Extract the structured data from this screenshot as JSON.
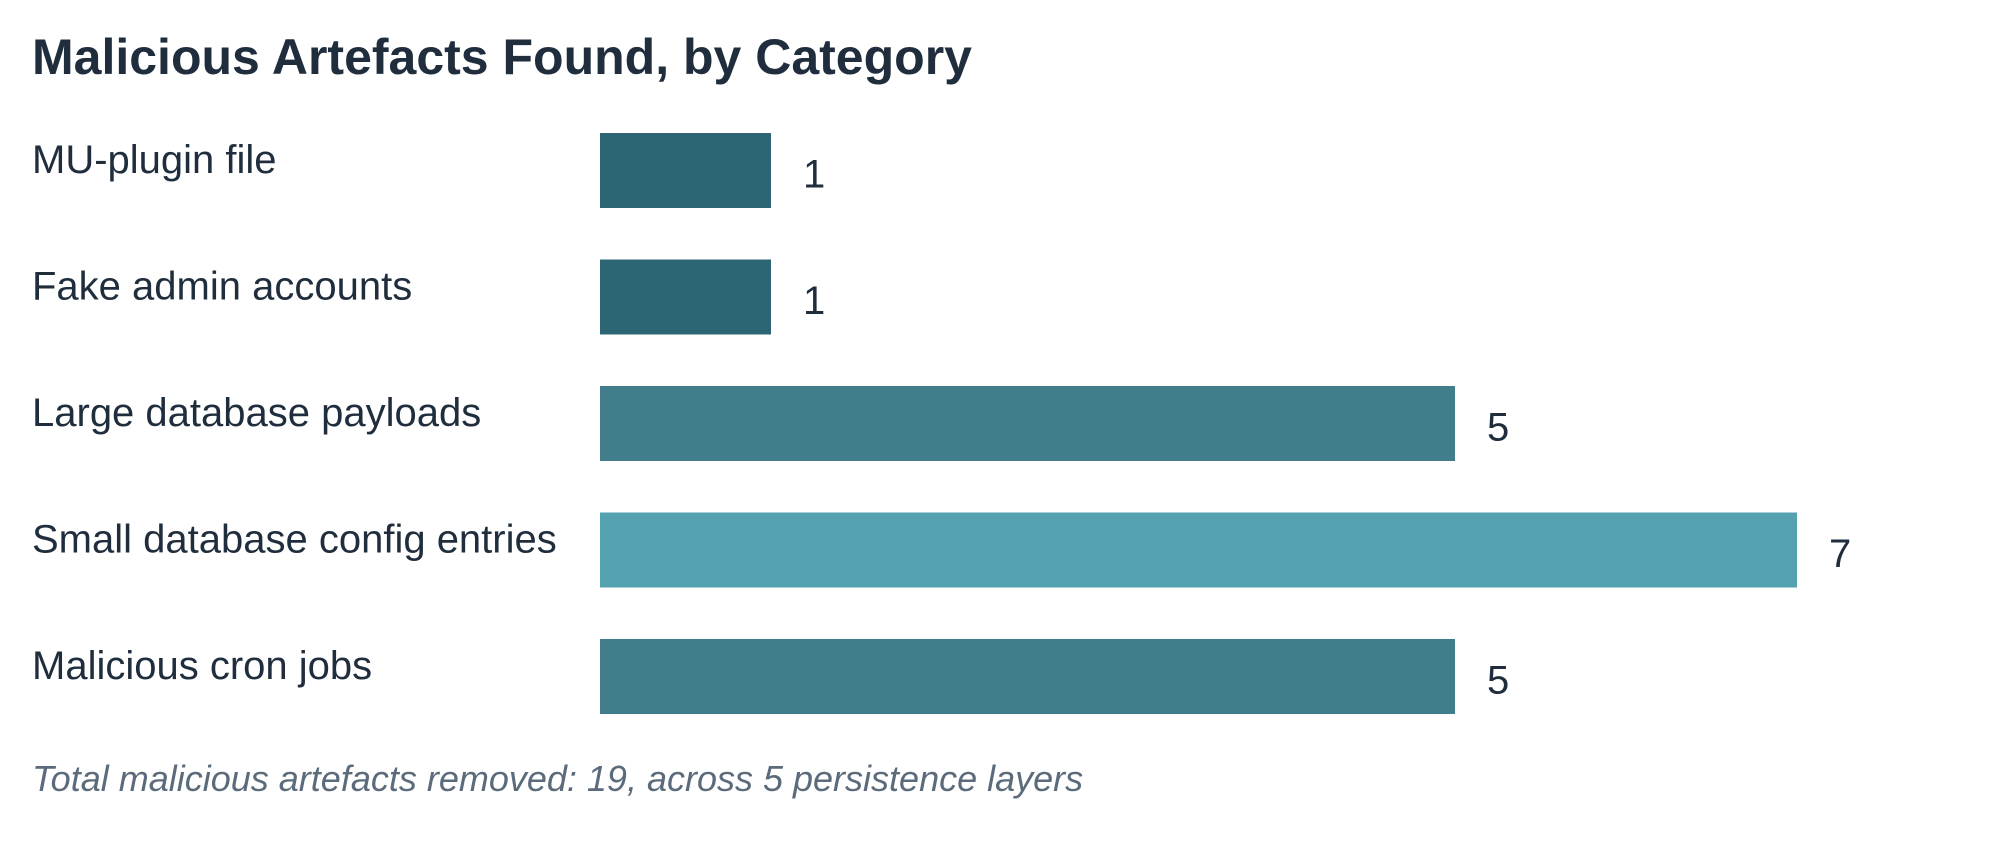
{
  "chart_data": {
    "type": "bar",
    "orientation": "horizontal",
    "title": "Malicious Artefacts Found, by Category",
    "categories": [
      "MU-plugin file",
      "Fake admin accounts",
      "Large database payloads",
      "Small database config entries",
      "Malicious cron jobs"
    ],
    "values": [
      1,
      1,
      5,
      7,
      5
    ],
    "bar_colors": [
      "#2c6675",
      "#2c6675",
      "#417d8b",
      "#54a2af",
      "#417d8b"
    ],
    "xlim": [
      0,
      7
    ],
    "grid": false,
    "legend": "none",
    "data_labels": true,
    "annotation": "Total malicious artefacts removed: 19, across 5 persistence layers"
  }
}
